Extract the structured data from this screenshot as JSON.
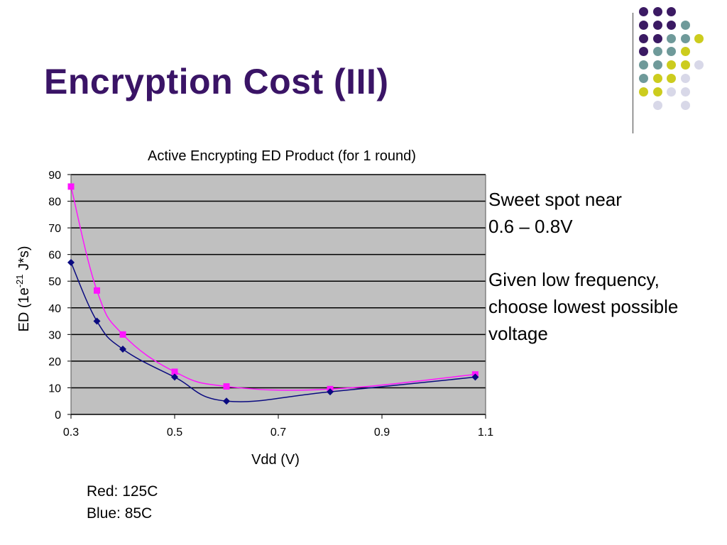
{
  "slide": {
    "title": "Encryption Cost (III)",
    "notes": {
      "sweet_spot": [
        "Sweet spot near",
        "0.6 – 0.8V"
      ],
      "advice": [
        "Given low frequency,",
        "choose lowest possible",
        "voltage"
      ]
    },
    "legend_text": [
      "Red: 125C",
      "Blue: 85C"
    ]
  },
  "decoration": {
    "colors": {
      "purple": "#3b1a63",
      "teal": "#6f9a9a",
      "yellow": "#cccc1e",
      "lavender": "#d8d8e8"
    },
    "dot_rows": [
      [
        "purple",
        "purple",
        "purple",
        null
      ],
      [
        "purple",
        "purple",
        "purple",
        "teal"
      ],
      [
        "purple",
        "purple",
        "teal",
        "teal",
        "yellow"
      ],
      [
        "purple",
        "teal",
        "teal",
        "yellow"
      ],
      [
        "teal",
        "teal",
        "yellow",
        "yellow",
        "lavender"
      ],
      [
        "teal",
        "yellow",
        "yellow",
        "lavender"
      ],
      [
        "yellow",
        "yellow",
        "lavender",
        "lavender"
      ],
      [
        null,
        "lavender",
        null,
        "lavender"
      ]
    ]
  },
  "chart_data": {
    "type": "line",
    "title": "Active Encrypting ED Product (for 1 round)",
    "xlabel": "Vdd (V)",
    "ylabel_main": "ED (1e",
    "ylabel_sup": "-21",
    "ylabel_tail": " J*s)",
    "xlim": [
      0.3,
      1.1
    ],
    "ylim": [
      0,
      90
    ],
    "xticks": [
      0.3,
      0.5,
      0.7,
      0.9,
      1.1
    ],
    "yticks": [
      0,
      10,
      20,
      30,
      40,
      50,
      60,
      70,
      80,
      90
    ],
    "grid": true,
    "plot_background": "#c0c0c0",
    "series": [
      {
        "color": "#ff14ff",
        "marker": "square",
        "x": [
          0.3,
          0.35,
          0.4,
          0.5,
          0.6,
          0.8,
          1.08
        ],
        "y": [
          85.5,
          46.5,
          30,
          16,
          10.5,
          9.5,
          15
        ]
      },
      {
        "color": "#0a0a80",
        "marker": "diamond",
        "x": [
          0.3,
          0.35,
          0.4,
          0.5,
          0.6,
          0.8,
          1.08
        ],
        "y": [
          57,
          35,
          24.5,
          14,
          5,
          8.5,
          14
        ]
      }
    ]
  }
}
